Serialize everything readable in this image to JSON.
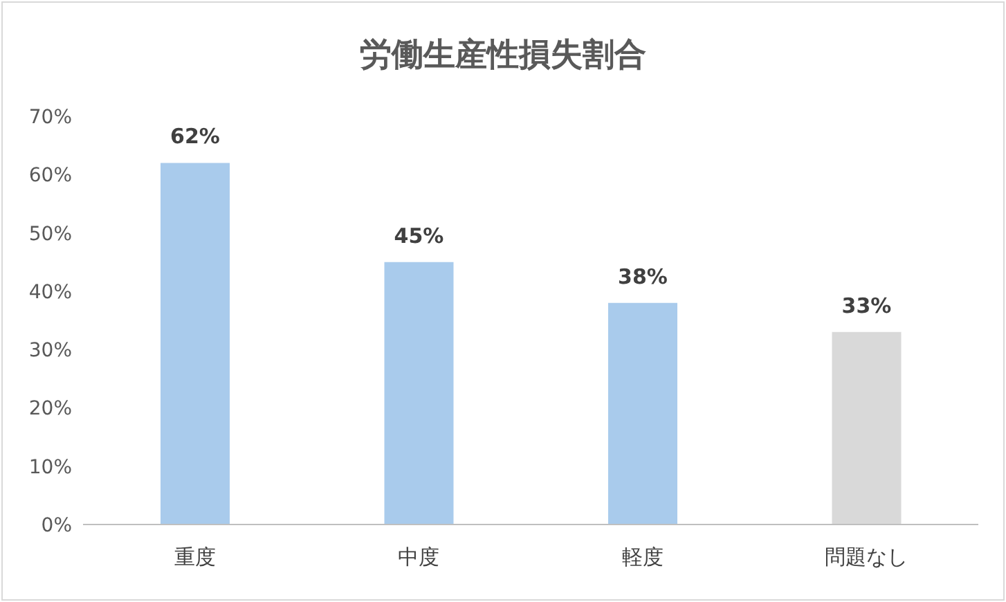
{
  "chart_data": {
    "type": "bar",
    "title": "労働生産性損失割合",
    "categories": [
      "重度",
      "中度",
      "軽度",
      "問題なし"
    ],
    "values": [
      62,
      45,
      38,
      33
    ],
    "value_labels": [
      "62%",
      "45%",
      "38%",
      "33%"
    ],
    "colors": [
      "#a9cbec",
      "#a9cbec",
      "#a9cbec",
      "#d9d9d9"
    ],
    "ylim": [
      0,
      70
    ],
    "yticks": [
      {
        "value": 0,
        "label": "0%"
      },
      {
        "value": 10,
        "label": "10%"
      },
      {
        "value": 20,
        "label": "20%"
      },
      {
        "value": 30,
        "label": "30%"
      },
      {
        "value": 40,
        "label": "40%"
      },
      {
        "value": 50,
        "label": "50%"
      },
      {
        "value": 60,
        "label": "60%"
      },
      {
        "value": 70,
        "label": "70%"
      }
    ],
    "grid": false,
    "legend": false
  }
}
